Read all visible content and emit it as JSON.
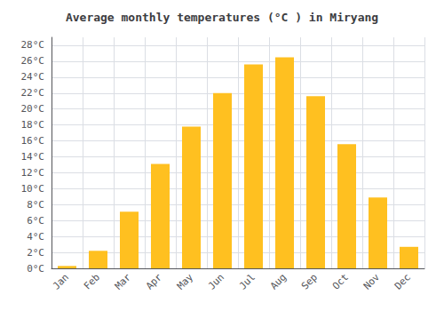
{
  "chart_data": {
    "type": "bar",
    "title": "Average monthly temperatures (°C ) in Miryang",
    "categories": [
      "Jan",
      "Feb",
      "Mar",
      "Apr",
      "May",
      "Jun",
      "Jul",
      "Aug",
      "Sep",
      "Oct",
      "Nov",
      "Dec"
    ],
    "values": [
      0.3,
      2.2,
      7.1,
      13.1,
      17.8,
      22.0,
      25.6,
      26.5,
      21.6,
      15.6,
      8.9,
      2.7
    ],
    "color": "#FFC020",
    "ylim": [
      0,
      29
    ],
    "yticks": [
      {
        "value": 0,
        "label": "0°C"
      },
      {
        "value": 2,
        "label": "2°C"
      },
      {
        "value": 4,
        "label": "4°C"
      },
      {
        "value": 6,
        "label": "6°C"
      },
      {
        "value": 8,
        "label": "8°C"
      },
      {
        "value": 10,
        "label": "10°C"
      },
      {
        "value": 12,
        "label": "12°C"
      },
      {
        "value": 14,
        "label": "14°C"
      },
      {
        "value": 16,
        "label": "16°C"
      },
      {
        "value": 18,
        "label": "18°C"
      },
      {
        "value": 20,
        "label": "20°C"
      },
      {
        "value": 22,
        "label": "22°C"
      },
      {
        "value": 24,
        "label": "24°C"
      },
      {
        "value": 26,
        "label": "26°C"
      },
      {
        "value": 28,
        "label": "28°C"
      }
    ],
    "grid": true
  }
}
